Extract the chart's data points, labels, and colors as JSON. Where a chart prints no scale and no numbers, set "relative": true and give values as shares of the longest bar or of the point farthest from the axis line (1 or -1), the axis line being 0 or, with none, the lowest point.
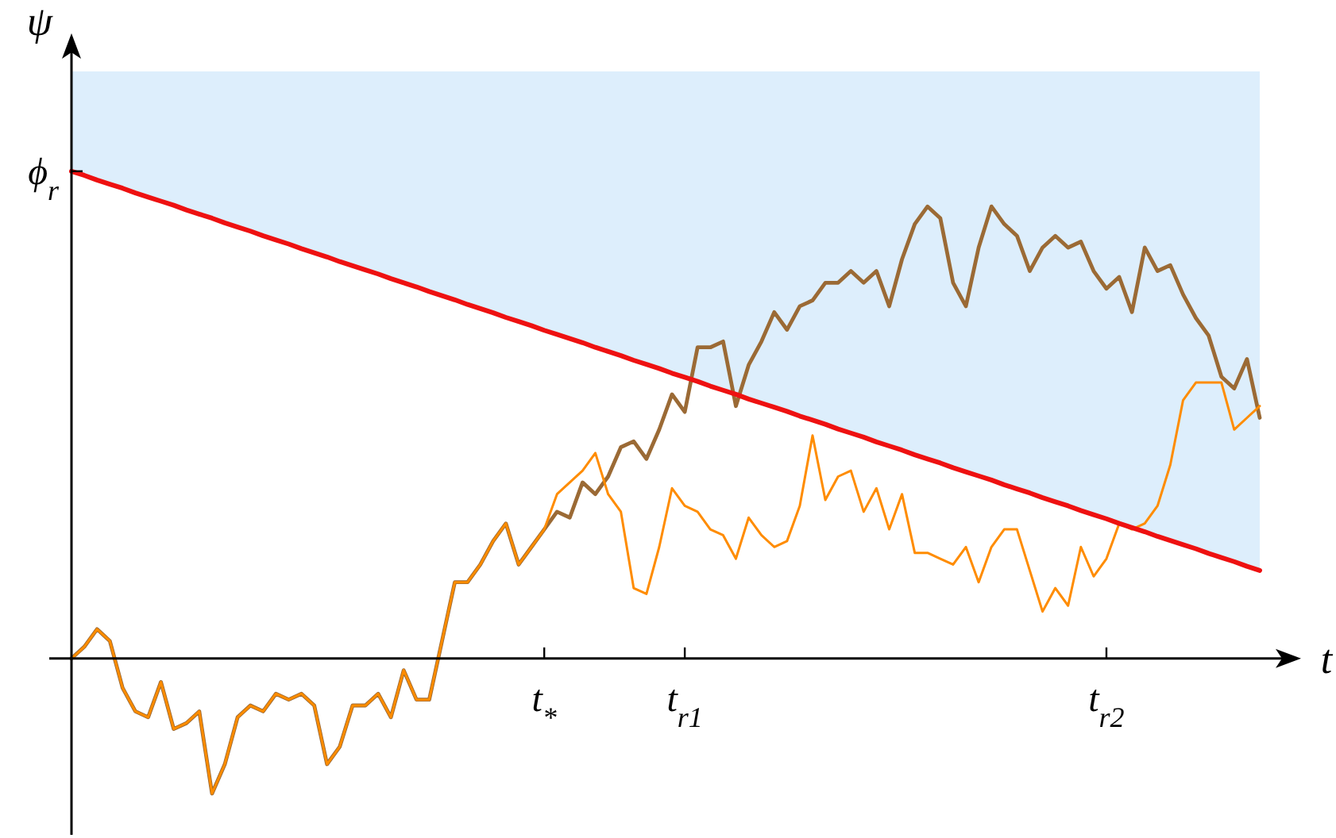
{
  "chart_data": {
    "type": "line",
    "relative": true,
    "xlabel": "t",
    "ylabel": "ψ",
    "categories": [
      null,
      null,
      null,
      null,
      null,
      null,
      null,
      null,
      null,
      null,
      null,
      null,
      null,
      null,
      null,
      null,
      null,
      null,
      null,
      null,
      null,
      null,
      null,
      null,
      null,
      null,
      null,
      null,
      null,
      null,
      null,
      null,
      null,
      null,
      null,
      null,
      null,
      "t$_{*}$",
      null,
      null,
      null,
      null,
      null,
      null,
      null,
      null,
      null,
      null,
      "t$_{r1}$",
      null,
      null,
      null,
      null,
      null,
      null,
      null,
      null,
      null,
      null,
      null,
      null,
      null,
      null,
      null,
      null,
      null,
      null,
      null,
      null,
      null,
      null,
      null,
      null,
      null,
      null,
      null,
      null,
      null,
      null,
      null,
      null,
      "t$_{r2}$",
      null,
      null,
      null,
      null,
      null,
      null,
      null,
      null,
      null,
      null,
      null,
      null
    ],
    "annotations": [
      "ϕ$_{r}$"
    ],
    "series": [
      {
        "type": "area",
        "color": "#ddeefc",
        "values": [
          1,
          1,
          1,
          1,
          1,
          1,
          1,
          1,
          1,
          1,
          1,
          1,
          1,
          1,
          1,
          1,
          1,
          1,
          1,
          1,
          1,
          1,
          1,
          1,
          1,
          1,
          1,
          1,
          1,
          1,
          1,
          1,
          1,
          1,
          1,
          1,
          1,
          1,
          1,
          1,
          1,
          1,
          1,
          1,
          1,
          1,
          1,
          1,
          1,
          1,
          1,
          1,
          1,
          1,
          1,
          1,
          1,
          1,
          1,
          1,
          1,
          1,
          1,
          1,
          1,
          1,
          1,
          1,
          1,
          1,
          1,
          1,
          1,
          1,
          1,
          1,
          1,
          1,
          1,
          1,
          1,
          1,
          1,
          1,
          1,
          1,
          1,
          1,
          1,
          1,
          1,
          1,
          1,
          1
        ]
      },
      {
        "color": "#9b6a35",
        "values": [
          0,
          0.02,
          0.05,
          0.03,
          -0.05,
          -0.09,
          -0.1,
          -0.04,
          -0.12,
          -0.11,
          -0.09,
          -0.23,
          -0.18,
          -0.1,
          -0.08,
          -0.09,
          -0.06,
          -0.07,
          -0.06,
          -0.08,
          -0.18,
          -0.15,
          -0.08,
          -0.08,
          -0.06,
          -0.1,
          -0.02,
          -0.07,
          -0.07,
          0.03,
          0.13,
          0.13,
          0.16,
          0.2,
          0.23,
          0.16,
          0.19,
          0.22,
          0.25,
          0.24,
          0.3,
          0.28,
          0.31,
          0.36,
          0.37,
          0.34,
          0.39,
          0.45,
          0.42,
          0.53,
          0.53,
          0.54,
          0.43,
          0.5,
          0.54,
          0.59,
          0.56,
          0.6,
          0.61,
          0.64,
          0.64,
          0.66,
          0.64,
          0.66,
          0.6,
          0.68,
          0.74,
          0.77,
          0.75,
          0.64,
          0.6,
          0.7,
          0.77,
          0.74,
          0.72,
          0.66,
          0.7,
          0.72,
          0.7,
          0.71,
          0.66,
          0.63,
          0.65,
          0.59,
          0.7,
          0.66,
          0.67,
          0.62,
          0.58,
          0.55,
          0.48,
          0.46,
          0.51,
          0.41
        ]
      },
      {
        "color": "#ff8c00",
        "values": [
          0,
          0.02,
          0.05,
          0.03,
          -0.05,
          -0.09,
          -0.1,
          -0.04,
          -0.12,
          -0.11,
          -0.09,
          -0.23,
          -0.18,
          -0.1,
          -0.08,
          -0.09,
          -0.06,
          -0.07,
          -0.06,
          -0.08,
          -0.18,
          -0.15,
          -0.08,
          -0.08,
          -0.06,
          -0.1,
          -0.02,
          -0.07,
          -0.07,
          0.03,
          0.13,
          0.13,
          0.16,
          0.2,
          0.23,
          0.16,
          0.19,
          0.22,
          0.28,
          0.3,
          0.32,
          0.35,
          0.28,
          0.25,
          0.12,
          0.11,
          0.19,
          0.29,
          0.26,
          0.25,
          0.22,
          0.21,
          0.17,
          0.24,
          0.21,
          0.19,
          0.2,
          0.26,
          0.38,
          0.27,
          0.31,
          0.32,
          0.25,
          0.29,
          0.22,
          0.28,
          0.18,
          0.18,
          0.17,
          0.16,
          0.19,
          0.13,
          0.19,
          0.22,
          0.22,
          0.15,
          0.08,
          0.12,
          0.09,
          0.19,
          0.14,
          0.17,
          0.23,
          0.22,
          0.23,
          0.26,
          0.33,
          0.44,
          0.47,
          0.47,
          0.47,
          0.39,
          0.41,
          0.43
        ]
      },
      {
        "color": "#ee1111",
        "values": [
          0.83,
          0.823,
          0.815,
          0.808,
          0.801,
          0.793,
          0.786,
          0.779,
          0.772,
          0.764,
          0.757,
          0.75,
          0.742,
          0.735,
          0.728,
          0.72,
          0.713,
          0.706,
          0.698,
          0.691,
          0.684,
          0.676,
          0.669,
          0.662,
          0.655,
          0.647,
          0.64,
          0.633,
          0.625,
          0.618,
          0.611,
          0.603,
          0.596,
          0.589,
          0.581,
          0.574,
          0.567,
          0.559,
          0.552,
          0.545,
          0.538,
          0.53,
          0.523,
          0.516,
          0.508,
          0.501,
          0.494,
          0.486,
          0.479,
          0.472,
          0.464,
          0.457,
          0.45,
          0.442,
          0.435,
          0.428,
          0.421,
          0.413,
          0.406,
          0.399,
          0.391,
          0.384,
          0.377,
          0.369,
          0.362,
          0.355,
          0.347,
          0.34,
          0.333,
          0.325,
          0.318,
          0.311,
          0.304,
          0.296,
          0.289,
          0.282,
          0.274,
          0.267,
          0.26,
          0.252,
          0.245,
          0.238,
          0.23,
          0.223,
          0.216,
          0.208,
          0.201,
          0.194,
          0.187,
          0.179,
          0.172,
          0.165,
          0.157,
          0.15
        ]
      }
    ]
  }
}
